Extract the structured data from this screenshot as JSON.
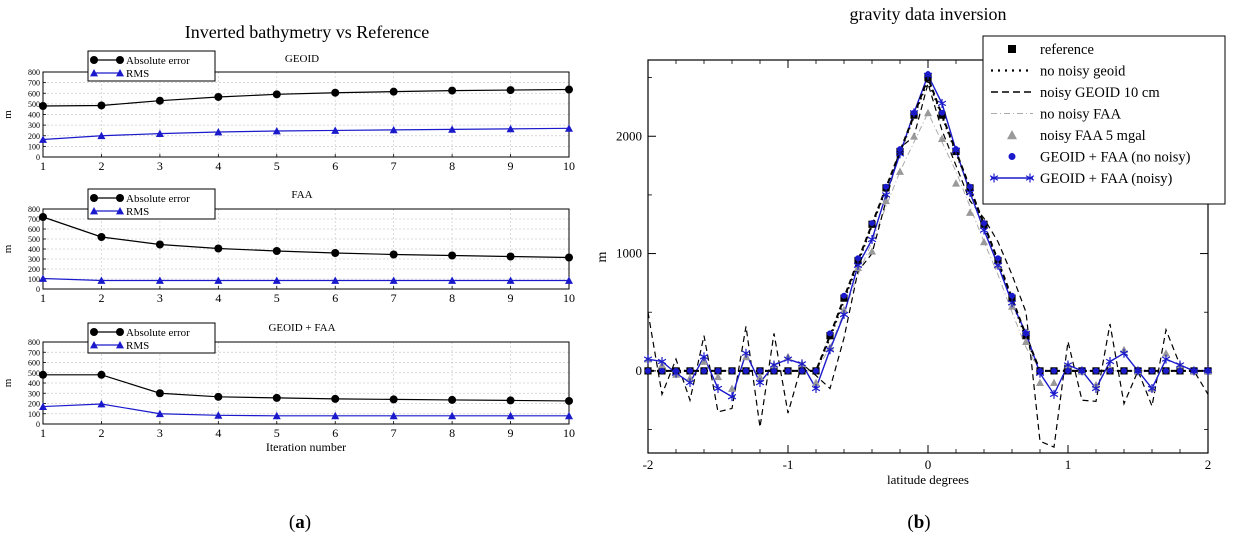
{
  "panel_a": {
    "label_open": "(",
    "label_letter": "a",
    "label_close": ")",
    "title": "Inverted bathymetry vs Reference"
  },
  "panel_b": {
    "label_open": "(",
    "label_letter": "b",
    "label_close": ")"
  },
  "colors": {
    "absolute_error": "#000000",
    "rms": "#1a1acc",
    "reference": "#000000",
    "noisy_faa_marker": "#999999",
    "geoid_faa": "#1a1acc"
  },
  "chart_data": [
    {
      "type": "line",
      "title": "GEOID",
      "xlabel": "",
      "ylabel": "m",
      "xlim": [
        1,
        10
      ],
      "ylim": [
        0,
        800
      ],
      "x_ticks": [
        1,
        2,
        3,
        4,
        5,
        6,
        7,
        8,
        9,
        10
      ],
      "y_ticks": [
        0,
        100,
        200,
        300,
        400,
        500,
        600,
        700,
        800
      ],
      "grid": true,
      "legend": "top-left",
      "x": [
        1,
        2,
        3,
        4,
        5,
        6,
        7,
        8,
        9,
        10
      ],
      "series": [
        {
          "name": "Absolute error",
          "marker": "circle",
          "values": [
            480,
            485,
            530,
            565,
            590,
            605,
            615,
            625,
            630,
            635
          ]
        },
        {
          "name": "RMS",
          "marker": "triangle",
          "values": [
            165,
            200,
            220,
            235,
            245,
            250,
            255,
            260,
            265,
            270
          ]
        }
      ]
    },
    {
      "type": "line",
      "title": "FAA",
      "xlabel": "",
      "ylabel": "m",
      "xlim": [
        1,
        10
      ],
      "ylim": [
        0,
        800
      ],
      "x_ticks": [
        1,
        2,
        3,
        4,
        5,
        6,
        7,
        8,
        9,
        10
      ],
      "y_ticks": [
        0,
        100,
        200,
        300,
        400,
        500,
        600,
        700,
        800
      ],
      "grid": true,
      "legend": "top-center",
      "x": [
        1,
        2,
        3,
        4,
        5,
        6,
        7,
        8,
        9,
        10
      ],
      "series": [
        {
          "name": "Absolute error",
          "marker": "circle",
          "values": [
            720,
            520,
            445,
            405,
            380,
            360,
            345,
            335,
            325,
            315
          ]
        },
        {
          "name": "RMS",
          "marker": "triangle",
          "values": [
            105,
            85,
            85,
            85,
            85,
            85,
            85,
            85,
            85,
            85
          ]
        }
      ]
    },
    {
      "type": "line",
      "title": "GEOID + FAA",
      "xlabel": "Iteration number",
      "ylabel": "m",
      "xlim": [
        1,
        10
      ],
      "ylim": [
        0,
        800
      ],
      "x_ticks": [
        1,
        2,
        3,
        4,
        5,
        6,
        7,
        8,
        9,
        10
      ],
      "y_ticks": [
        0,
        100,
        200,
        300,
        400,
        500,
        600,
        700,
        800
      ],
      "grid": true,
      "legend": "top-left",
      "x": [
        1,
        2,
        3,
        4,
        5,
        6,
        7,
        8,
        9,
        10
      ],
      "series": [
        {
          "name": "Absolute error",
          "marker": "circle",
          "values": [
            480,
            480,
            300,
            265,
            255,
            245,
            240,
            235,
            230,
            225
          ]
        },
        {
          "name": "RMS",
          "marker": "triangle",
          "values": [
            170,
            195,
            100,
            85,
            80,
            80,
            80,
            80,
            80,
            80
          ]
        }
      ]
    },
    {
      "type": "line",
      "title": "gravity data inversion",
      "xlabel": "latitude degrees",
      "ylabel": "m",
      "xlim": [
        -2,
        2
      ],
      "ylim": [
        -700,
        2650
      ],
      "x_ticks": [
        -2,
        -1,
        0,
        1,
        2
      ],
      "y_ticks": [
        0,
        1000,
        2000
      ],
      "grid": false,
      "legend": "top-right",
      "x": [
        -2.0,
        -1.9,
        -1.8,
        -1.7,
        -1.6,
        -1.5,
        -1.4,
        -1.3,
        -1.2,
        -1.1,
        -1.0,
        -0.9,
        -0.8,
        -0.7,
        -0.6,
        -0.5,
        -0.4,
        -0.3,
        -0.2,
        -0.1,
        0.0,
        0.1,
        0.2,
        0.3,
        0.4,
        0.5,
        0.6,
        0.7,
        0.8,
        0.9,
        1.0,
        1.1,
        1.2,
        1.3,
        1.4,
        1.5,
        1.6,
        1.7,
        1.8,
        1.9,
        2.0
      ],
      "series": [
        {
          "name": "reference",
          "style": "square-markers",
          "values": [
            0,
            0,
            0,
            0,
            0,
            0,
            0,
            0,
            0,
            0,
            0,
            0,
            0,
            300,
            620,
            940,
            1250,
            1560,
            1870,
            2180,
            2500,
            2180,
            1870,
            1560,
            1250,
            940,
            620,
            300,
            0,
            0,
            0,
            0,
            0,
            0,
            0,
            0,
            0,
            0,
            0,
            0,
            0
          ]
        },
        {
          "name": "no noisy geoid",
          "style": "dotted",
          "values": [
            0,
            0,
            0,
            0,
            0,
            0,
            0,
            0,
            0,
            0,
            0,
            0,
            0,
            280,
            600,
            920,
            1240,
            1550,
            1860,
            2170,
            2480,
            2170,
            1860,
            1550,
            1240,
            920,
            600,
            280,
            0,
            0,
            0,
            0,
            0,
            0,
            0,
            0,
            0,
            0,
            0,
            0,
            0
          ]
        },
        {
          "name": "noisy GEOID 10 cm",
          "style": "dashed",
          "values": [
            500,
            -200,
            100,
            -250,
            300,
            -350,
            -320,
            380,
            -480,
            320,
            -360,
            60,
            -40,
            -150,
            280,
            850,
            1000,
            1450,
            1900,
            2000,
            2450,
            2050,
            1750,
            1450,
            1300,
            1100,
            820,
            500,
            -600,
            -650,
            250,
            -250,
            -260,
            400,
            -280,
            0,
            -300,
            350,
            50,
            0,
            -200
          ]
        },
        {
          "name": "no noisy FAA",
          "style": "dash-dot",
          "values": [
            0,
            0,
            0,
            0,
            0,
            0,
            0,
            0,
            0,
            0,
            0,
            0,
            0,
            200,
            500,
            820,
            1100,
            1400,
            1700,
            1950,
            2200,
            1950,
            1700,
            1400,
            1100,
            820,
            500,
            200,
            0,
            0,
            0,
            0,
            0,
            0,
            0,
            0,
            0,
            0,
            0,
            0,
            0
          ]
        },
        {
          "name": "noisy FAA 5 mgal",
          "style": "triangle-markers",
          "values": [
            100,
            50,
            -30,
            -60,
            80,
            -50,
            -150,
            120,
            -50,
            50,
            120,
            60,
            -100,
            200,
            520,
            880,
            1020,
            1450,
            1700,
            2000,
            2200,
            1980,
            1600,
            1350,
            1100,
            900,
            550,
            250,
            -100,
            -100,
            50,
            0,
            -120,
            20,
            180,
            0,
            -150,
            150,
            50,
            0,
            0
          ]
        },
        {
          "name": "GEOID + FAA (no noisy)",
          "style": "circle-markers",
          "values": [
            0,
            0,
            0,
            0,
            0,
            0,
            0,
            0,
            0,
            0,
            0,
            0,
            0,
            320,
            640,
            960,
            1260,
            1570,
            1890,
            2200,
            2530,
            2200,
            1890,
            1570,
            1260,
            960,
            640,
            320,
            0,
            0,
            0,
            0,
            0,
            0,
            0,
            0,
            0,
            0,
            0,
            0,
            0
          ]
        },
        {
          "name": "GEOID + FAA (noisy)",
          "style": "line-star",
          "values": [
            100,
            80,
            -20,
            -100,
            120,
            -150,
            -220,
            150,
            -100,
            50,
            100,
            60,
            -150,
            180,
            480,
            900,
            1120,
            1500,
            1850,
            2200,
            2520,
            2280,
            1880,
            1520,
            1200,
            900,
            580,
            320,
            -20,
            -200,
            50,
            0,
            -150,
            80,
            150,
            0,
            -150,
            100,
            50,
            0,
            0
          ]
        }
      ]
    }
  ]
}
